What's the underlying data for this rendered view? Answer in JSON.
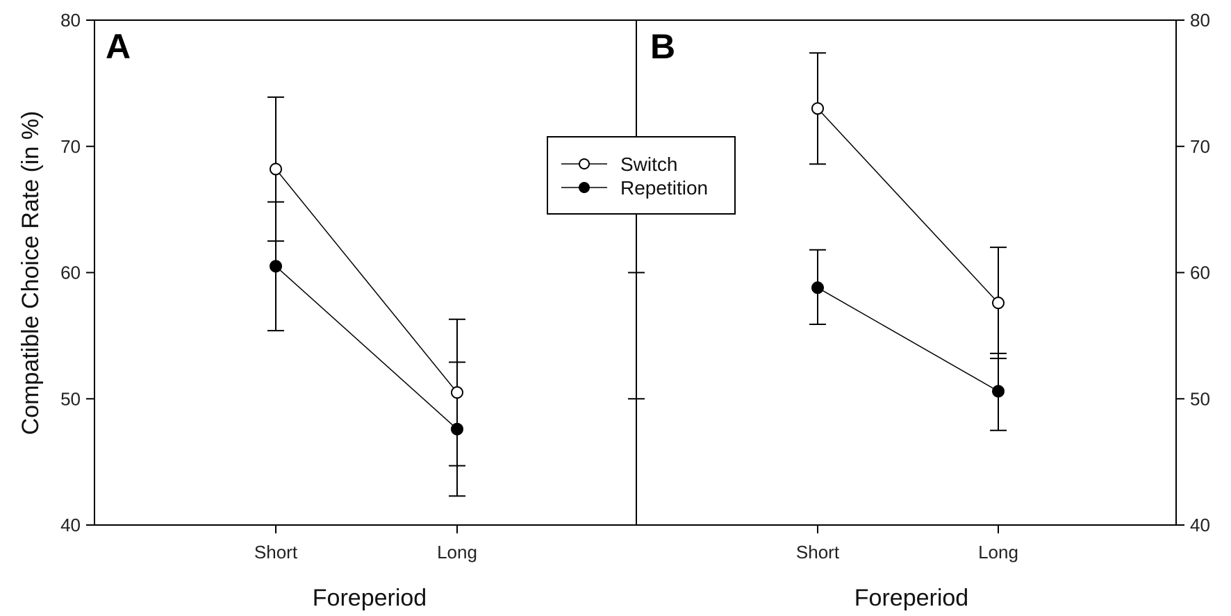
{
  "chart_data": [
    {
      "type": "line",
      "panel_label": "A",
      "categories": [
        "Short",
        "Long"
      ],
      "xlabel": "Foreperiod",
      "ylabel": "Compatible Choice Rate (in %)",
      "ylim": [
        40,
        80
      ],
      "yticks": [
        40,
        50,
        60,
        70,
        80
      ],
      "series": [
        {
          "name": "Switch",
          "marker": "open-circle",
          "values": [
            68.2,
            50.5
          ],
          "error_lower": [
            62.5,
            44.7
          ],
          "error_upper": [
            73.9,
            56.3
          ]
        },
        {
          "name": "Repetition",
          "marker": "filled-circle",
          "values": [
            60.5,
            47.6
          ],
          "error_lower": [
            55.4,
            42.3
          ],
          "error_upper": [
            65.6,
            52.9
          ]
        }
      ]
    },
    {
      "type": "line",
      "panel_label": "B",
      "categories": [
        "Short",
        "Long"
      ],
      "xlabel": "Foreperiod",
      "ylabel": "",
      "ylim": [
        40,
        80
      ],
      "yticks": [
        40,
        50,
        60,
        70,
        80
      ],
      "series": [
        {
          "name": "Switch",
          "marker": "open-circle",
          "values": [
            73.0,
            57.6
          ],
          "error_lower": [
            68.6,
            53.2
          ],
          "error_upper": [
            77.4,
            62.0
          ]
        },
        {
          "name": "Repetition",
          "marker": "filled-circle",
          "values": [
            58.8,
            50.6
          ],
          "error_lower": [
            55.9,
            47.5
          ],
          "error_upper": [
            61.8,
            53.6
          ]
        }
      ]
    }
  ],
  "legend": {
    "placement": "top-center",
    "items": [
      {
        "label": "Switch",
        "marker": "open-circle"
      },
      {
        "label": "Repetition",
        "marker": "filled-circle"
      }
    ]
  },
  "colors": {
    "line": "#000000",
    "background": "#ffffff"
  }
}
